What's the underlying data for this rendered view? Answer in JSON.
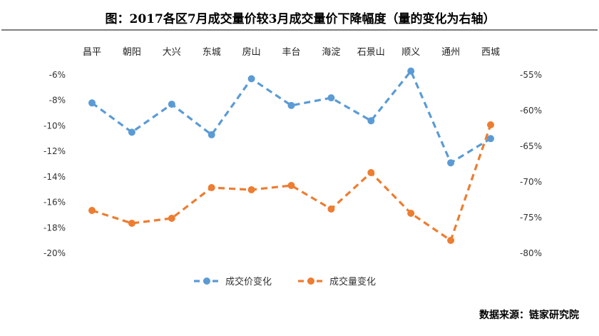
{
  "chart_data": {
    "type": "line",
    "title": "图：2017各区7月成交量价较3月成交量价下降幅度（量的变化为右轴）",
    "source": "数据来源：链家研究院",
    "categories": [
      "昌平",
      "朝阳",
      "大兴",
      "东城",
      "房山",
      "丰台",
      "海淀",
      "石景山",
      "顺义",
      "通州",
      "西城"
    ],
    "left_axis": {
      "ylim": [
        -20,
        -6
      ],
      "ticks": [
        -6,
        -8,
        -10,
        -12,
        -14,
        -16,
        -18,
        -20
      ],
      "tick_labels": [
        "-6%",
        "-8%",
        "-10%",
        "-12%",
        "-14%",
        "-16%",
        "-18%",
        "-20%"
      ]
    },
    "right_axis": {
      "ylim": [
        -80,
        -55
      ],
      "ticks": [
        -55,
        -60,
        -65,
        -70,
        -75,
        -80
      ],
      "tick_labels": [
        "-55%",
        "-60%",
        "-65%",
        "-70%",
        "-75%",
        "-80%"
      ]
    },
    "series": [
      {
        "name": "成交价变化",
        "axis": "left",
        "color": "#5B9BD5",
        "values": [
          -8.2,
          -10.5,
          -8.3,
          -10.7,
          -6.3,
          -8.4,
          -7.8,
          -9.6,
          -5.7,
          -12.9,
          -11.0
        ]
      },
      {
        "name": "成交量变化",
        "axis": "right",
        "color": "#ED7D31",
        "values": [
          -74.0,
          -75.8,
          -75.1,
          -70.8,
          -71.1,
          -70.5,
          -73.8,
          -68.7,
          -74.4,
          -78.2,
          -62.0
        ]
      }
    ],
    "grid": false,
    "legend": "bottom-center"
  }
}
